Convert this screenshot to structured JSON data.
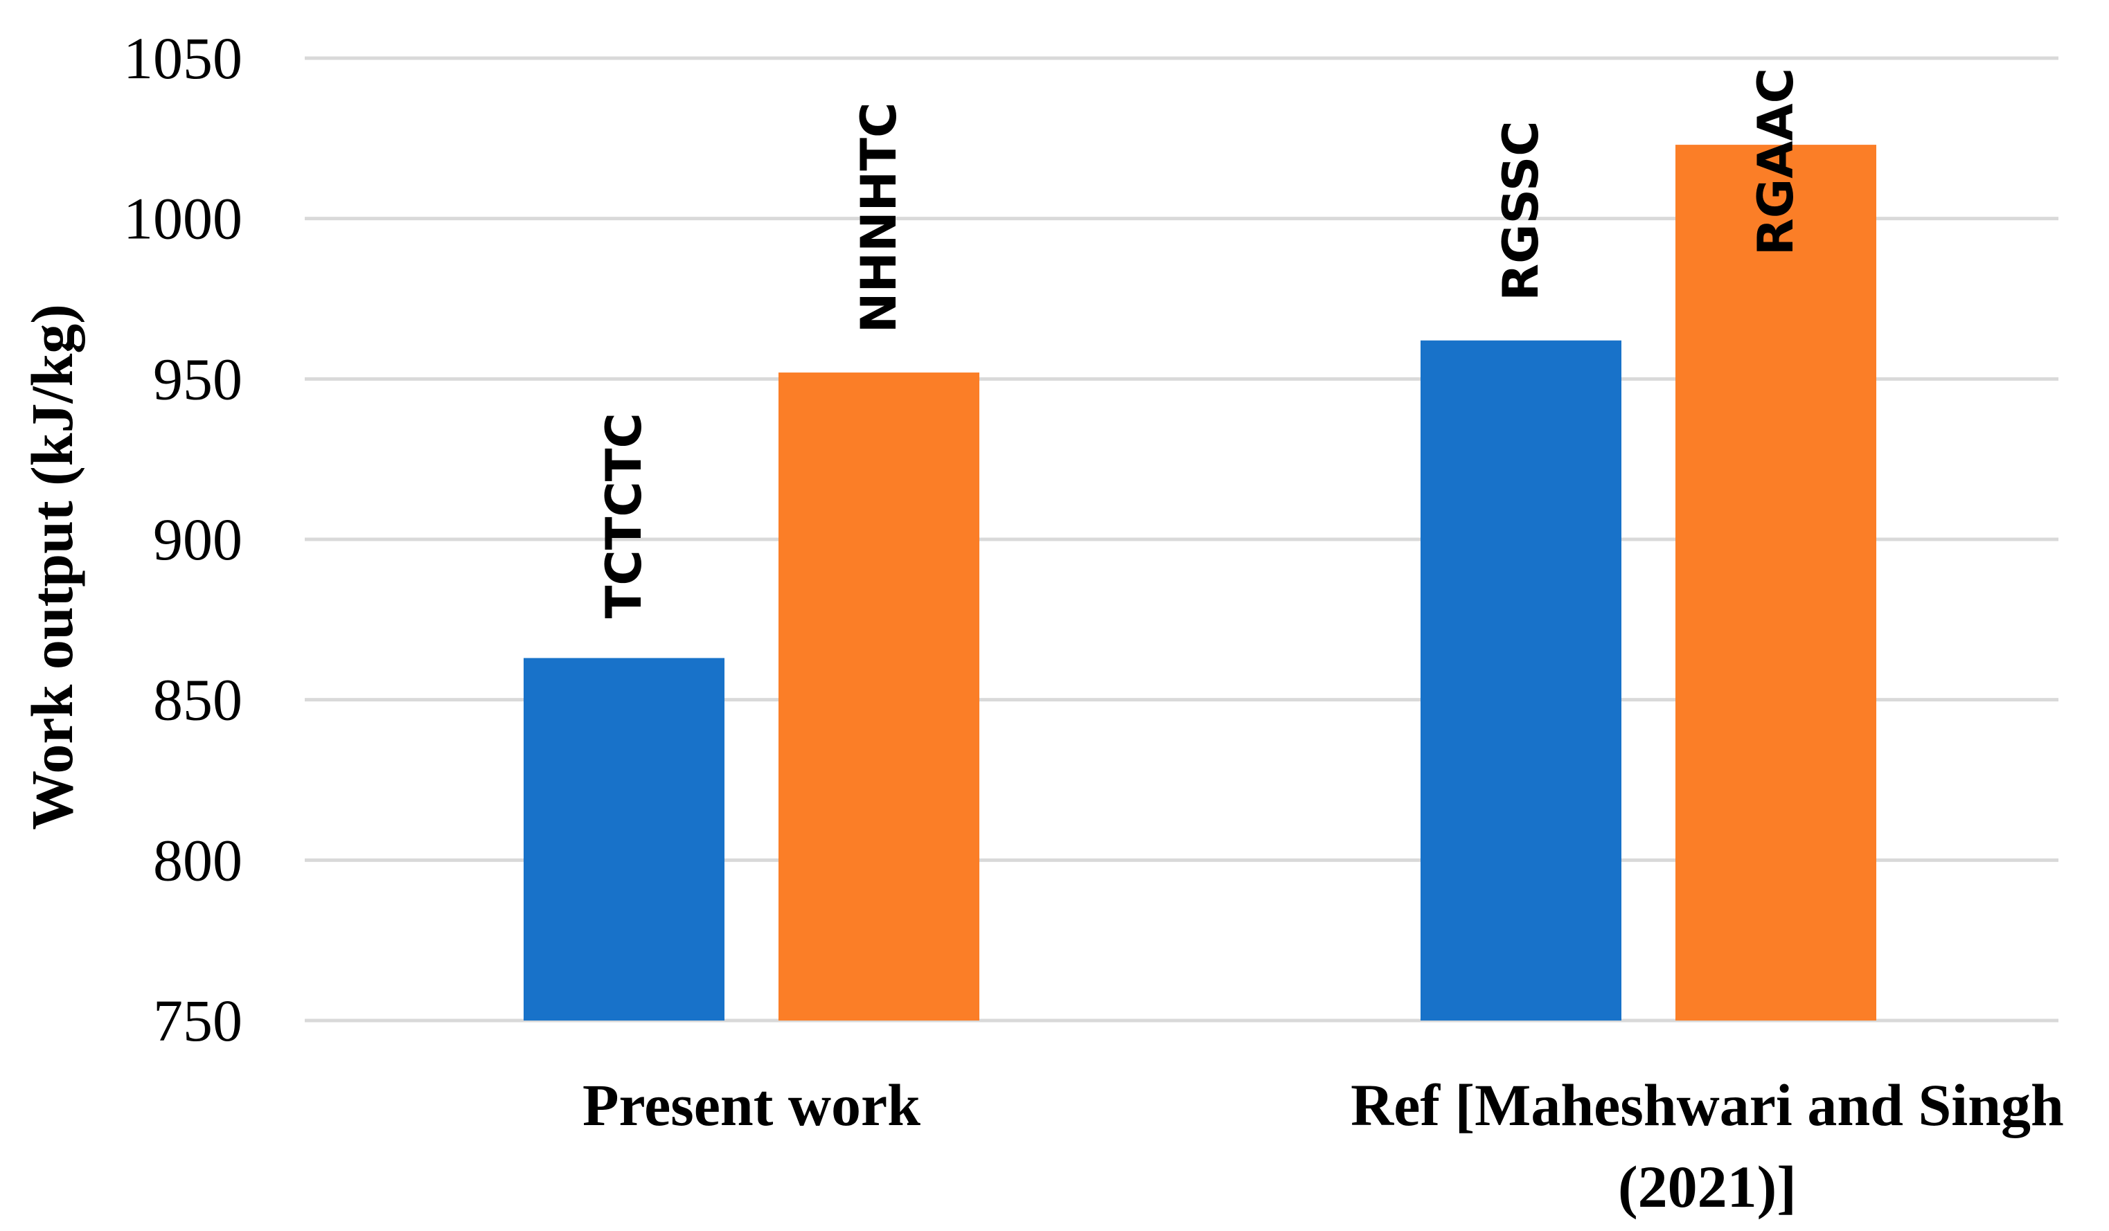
{
  "chart_data": {
    "type": "bar",
    "title": "",
    "xlabel": "",
    "ylabel": "Work output (kJ/kg)",
    "ylim": [
      750,
      1050
    ],
    "yticks": [
      750,
      800,
      850,
      900,
      950,
      1000,
      1050
    ],
    "grid": true,
    "legend": "none",
    "categories": [
      "Present work",
      "Ref [Maheshwari and Singh (2021)]"
    ],
    "category_label_lines": [
      [
        "Present work"
      ],
      [
        "Ref [Maheshwari and Singh",
        "(2021)]"
      ]
    ],
    "bars": [
      {
        "category": 0,
        "label": "TCTCTC",
        "value": 863,
        "color": "#1872c9"
      },
      {
        "category": 0,
        "label": "NHNHTC",
        "value": 952,
        "color": "#fb7e27"
      },
      {
        "category": 1,
        "label": "RGSSC",
        "value": 962,
        "color": "#1872c9"
      },
      {
        "category": 1,
        "label": "RGAAC",
        "value": 1023,
        "color": "#fb7e27"
      }
    ]
  }
}
